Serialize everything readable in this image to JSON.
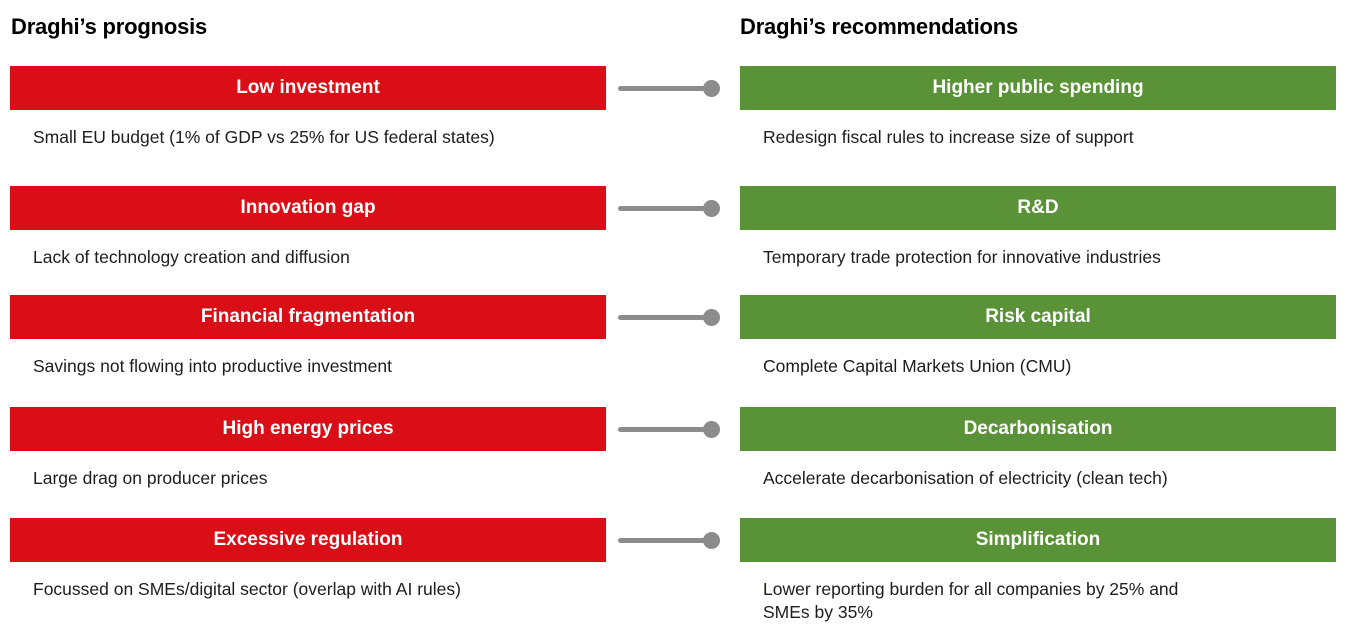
{
  "colors": {
    "prognosis_red": "#da0e16",
    "recommendation_green": "#5a9237",
    "connector_gray": "#8c8c8c",
    "body_text": "#1d1d1b"
  },
  "left_column": {
    "header": "Draghi’s prognosis"
  },
  "right_column": {
    "header": "Draghi’s recommendations"
  },
  "rows": [
    {
      "prognosis": {
        "title": "Low investment",
        "description": "Small EU budget (1% of GDP vs 25% for US federal states)"
      },
      "recommendation": {
        "title": "Higher public spending",
        "description": "Redesign fiscal rules to increase size of support"
      }
    },
    {
      "prognosis": {
        "title": "Innovation gap",
        "description": "Lack of technology creation and diffusion"
      },
      "recommendation": {
        "title": "R&D",
        "description": "Temporary trade protection for innovative industries"
      }
    },
    {
      "prognosis": {
        "title": "Financial fragmentation",
        "description": "Savings not flowing into productive investment"
      },
      "recommendation": {
        "title": "Risk capital",
        "description": "Complete Capital Markets Union (CMU)"
      }
    },
    {
      "prognosis": {
        "title": "High energy prices",
        "description": "Large drag on producer prices"
      },
      "recommendation": {
        "title": "Decarbonisation",
        "description": "Accelerate decarbonisation of electricity (clean tech)"
      }
    },
    {
      "prognosis": {
        "title": "Excessive regulation",
        "description": "Focussed on SMEs/digital sector (overlap with AI rules)"
      },
      "recommendation": {
        "title": "Simplification",
        "description": "Lower reporting burden for all companies by 25% and\nSMEs by 35%"
      }
    }
  ]
}
